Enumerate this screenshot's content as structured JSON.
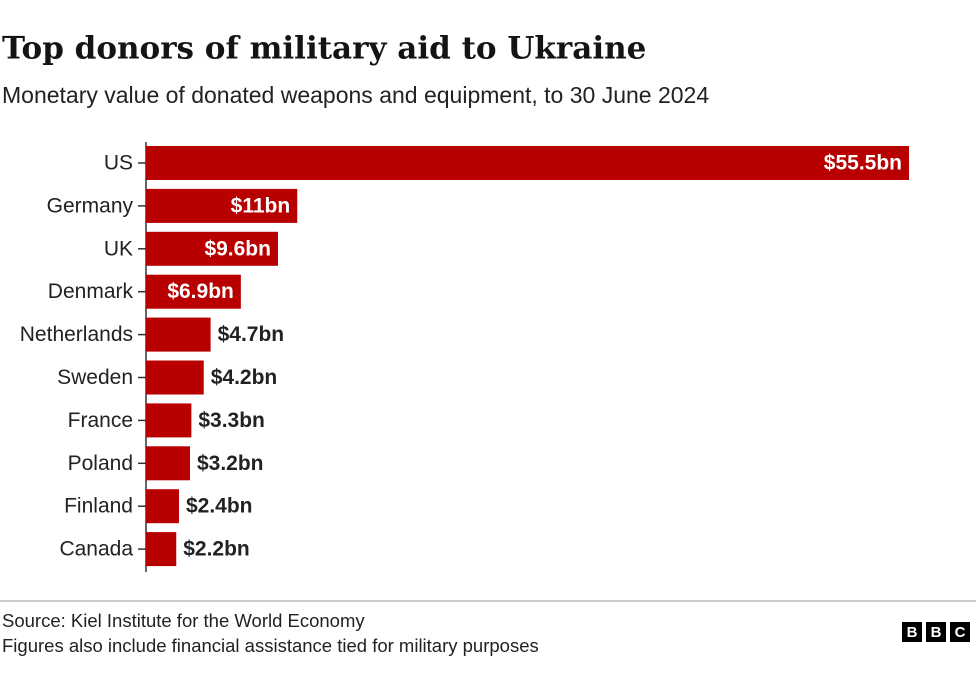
{
  "chart_data": {
    "type": "barh",
    "title": "Top donors of military aid to Ukraine",
    "subtitle": "Monetary value of donated weapons and equipment, to 30 June 2024",
    "categories": [
      "US",
      "Germany",
      "UK",
      "Denmark",
      "Netherlands",
      "Sweden",
      "France",
      "Poland",
      "Finland",
      "Canada"
    ],
    "values": [
      55.5,
      11,
      9.6,
      6.9,
      4.7,
      4.2,
      3.3,
      3.2,
      2.4,
      2.2
    ],
    "value_labels": [
      "$55.5bn",
      "$11bn",
      "$9.6bn",
      "$6.9bn",
      "$4.7bn",
      "$4.2bn",
      "$3.3bn",
      "$3.2bn",
      "$2.4bn",
      "$2.2bn"
    ],
    "color": "#b80000"
  },
  "footer": {
    "source": "Source: Kiel Institute for the World Economy",
    "note": "Figures also include financial assistance tied for military purposes",
    "logo": [
      "B",
      "B",
      "C"
    ]
  }
}
